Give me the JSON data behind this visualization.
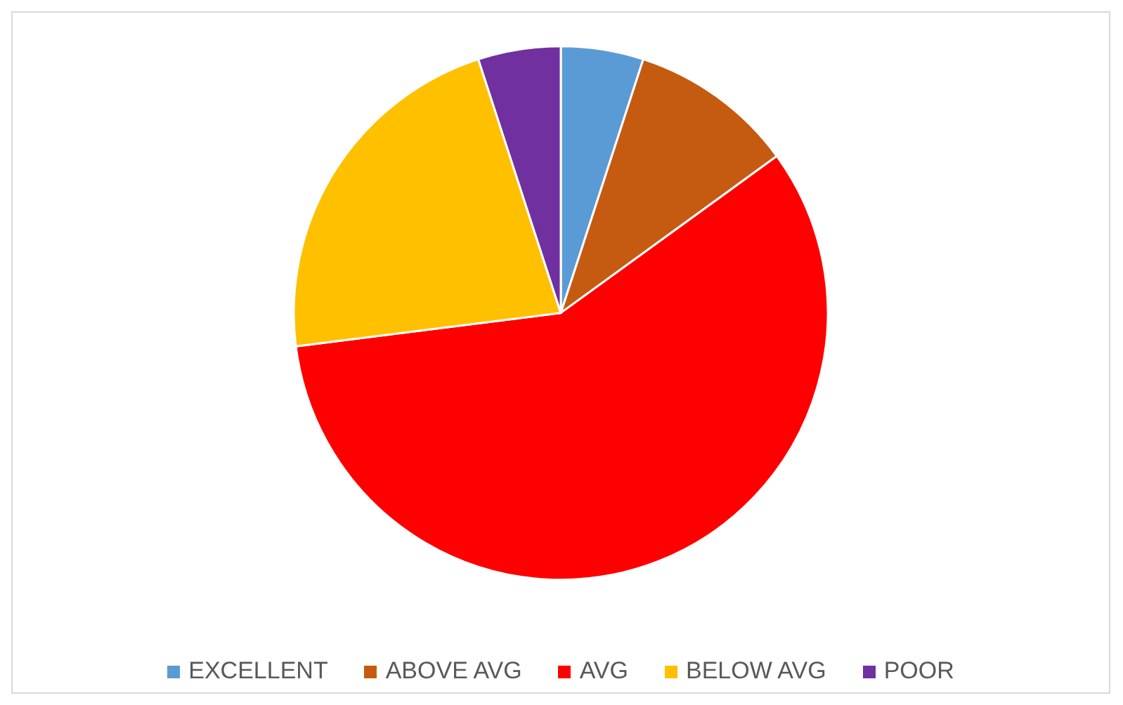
{
  "chart_data": {
    "type": "pie",
    "categories": [
      "EXCELLENT",
      "ABOVE AVG",
      "AVG",
      "BELOW AVG",
      "POOR"
    ],
    "values": [
      5,
      10,
      58,
      22,
      5
    ],
    "colors": [
      "#5b9bd5",
      "#c55a11",
      "#ff0000",
      "#ffc000",
      "#7030a0"
    ],
    "legend": "bottom"
  }
}
